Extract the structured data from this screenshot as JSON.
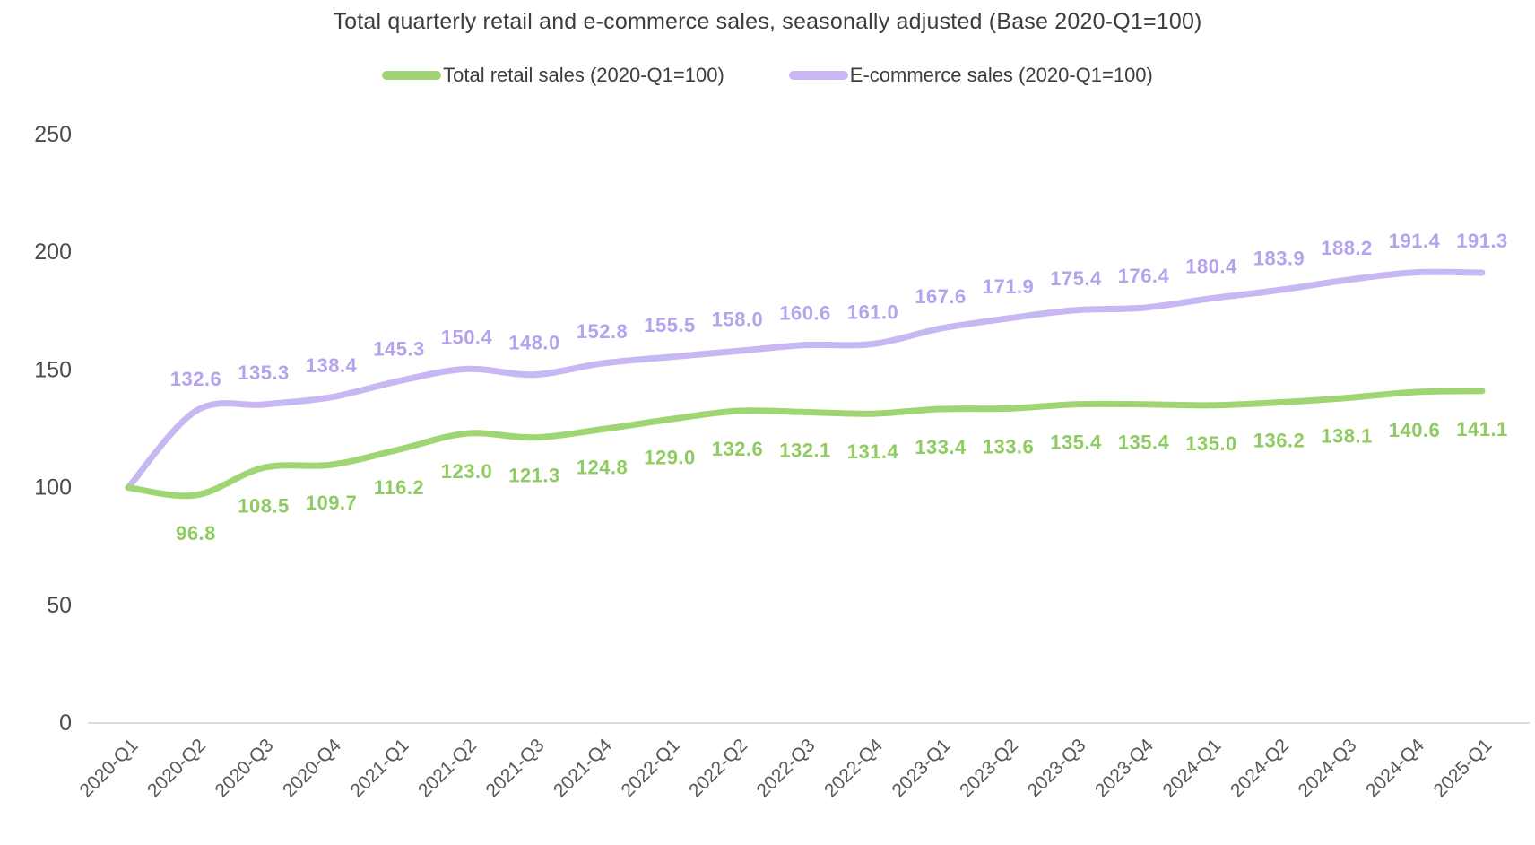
{
  "chart_data": {
    "type": "line",
    "title": "Total quarterly retail and e-commerce sales, seasonally adjusted (Base 2020-Q1=100)",
    "categories": [
      "2020-Q1",
      "2020-Q2",
      "2020-Q3",
      "2020-Q4",
      "2021-Q1",
      "2021-Q2",
      "2021-Q3",
      "2021-Q4",
      "2022-Q1",
      "2022-Q2",
      "2022-Q3",
      "2022-Q4",
      "2023-Q1",
      "2023-Q2",
      "2023-Q3",
      "2023-Q4",
      "2024-Q1",
      "2024-Q2",
      "2024-Q3",
      "2024-Q4",
      "2025-Q1"
    ],
    "series": [
      {
        "name": "Total retail sales (2020-Q1=100)",
        "color": "#9fd673",
        "label_color": "#8ecb61",
        "label_position": "below",
        "values": [
          100,
          96.8,
          108.5,
          109.7,
          116.2,
          123.0,
          121.3,
          124.8,
          129.0,
          132.6,
          132.1,
          131.4,
          133.4,
          133.6,
          135.4,
          135.4,
          135.0,
          136.2,
          138.1,
          140.6,
          141.1
        ]
      },
      {
        "name": "E-commerce sales (2020-Q1=100)",
        "color": "#c7b7f3",
        "label_color": "#b5a3ef",
        "label_position": "above",
        "values": [
          100,
          132.6,
          135.3,
          138.4,
          145.3,
          150.4,
          148.0,
          152.8,
          155.5,
          158.0,
          160.6,
          161.0,
          167.6,
          171.9,
          175.4,
          176.4,
          180.4,
          183.9,
          188.2,
          191.4,
          191.3
        ]
      }
    ],
    "y_ticks": [
      0,
      50,
      100,
      150,
      200,
      250
    ],
    "ylim": [
      0,
      250
    ],
    "grid": false,
    "legend_position": "top",
    "smooth": true,
    "data_labels": {
      "show": true,
      "skip_first": true,
      "decimals": 1
    }
  }
}
